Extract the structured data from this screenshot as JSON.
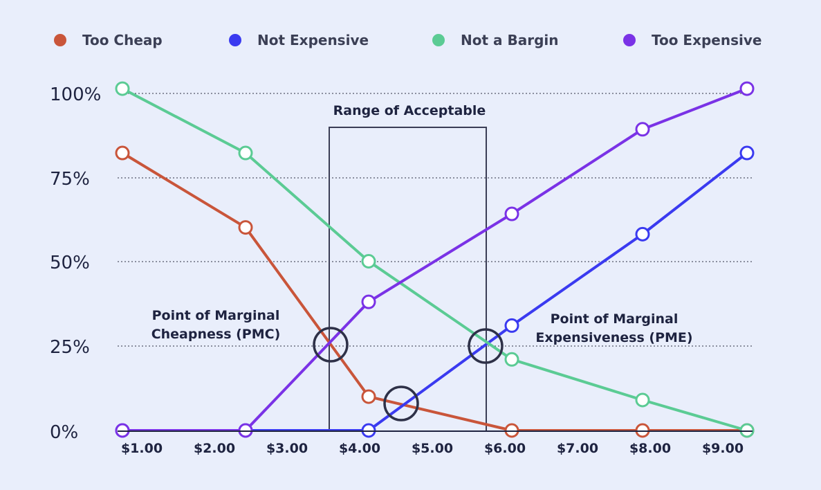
{
  "chart_data": {
    "type": "line",
    "title": "",
    "xlabel": "",
    "ylabel": "",
    "x_tick_labels": [
      "$1.00",
      "$2.00",
      "$3.00",
      "$4.00",
      "$5.00",
      "$6.00",
      "$7.00",
      "$8.00",
      "$9.00"
    ],
    "y_tick_labels": [
      "100%",
      "75%",
      "50%",
      "25%",
      "0%"
    ],
    "x_ticks": [
      1,
      2,
      3,
      4,
      5,
      6,
      7,
      8,
      9
    ],
    "y_ticks": [
      100,
      75,
      50,
      25,
      0
    ],
    "xlim": [
      0.8,
      9.4
    ],
    "ylim": [
      -5,
      103
    ],
    "grid": "horizontal dotted",
    "legend_position": "top",
    "x": [
      1.0,
      2.7,
      4.3,
      6.3,
      8.3,
      9.8
    ],
    "series": [
      {
        "name": "Too Cheap",
        "color": "#c9553a",
        "values": [
          82,
          60,
          10,
          0,
          0,
          0
        ]
      },
      {
        "name": "Not Expensive",
        "color": "#3a3af0",
        "values": [
          0,
          0,
          0,
          31,
          58,
          82
        ]
      },
      {
        "name": "Not a Bargin",
        "color": "#5bcb94",
        "values": [
          101,
          82,
          50,
          21,
          9,
          0
        ]
      },
      {
        "name": "Too Expensive",
        "color": "#7a32e6",
        "values": [
          0,
          0,
          38,
          64,
          89,
          101
        ]
      }
    ],
    "annotations": {
      "range": {
        "label": "Range of Acceptable",
        "x_from": 3.62,
        "x_to": 5.78,
        "y_top": 90
      },
      "pmc": {
        "lines": [
          "Point of Marginal",
          "Cheapness (PMC)"
        ],
        "x": 3.66,
        "y": 25
      },
      "pme": {
        "lines": [
          "Point of Marginal",
          "Expensiveness (PME)"
        ],
        "x": 5.76,
        "y": 25
      },
      "intersection": {
        "x": 4.68,
        "y": 8
      }
    }
  }
}
